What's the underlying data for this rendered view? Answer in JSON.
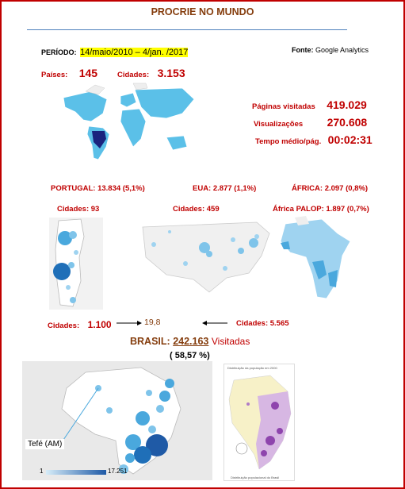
{
  "title": "PROCRIE NO MUNDO",
  "period": {
    "label": "PERÍODO:",
    "value": "14/maio/2010 – 4/jan. /2017"
  },
  "source": {
    "label": "Fonte:",
    "value": "Google Analytics"
  },
  "world": {
    "countries_label": "Países:",
    "countries_value": "145",
    "cities_label": "Cidades:",
    "cities_value": "3.153",
    "pages_label": "Páginas visitadas",
    "pages_value": "419.029",
    "views_label": "Visualizações",
    "views_value": "270.608",
    "time_label": "Tempo médio/pág.",
    "time_value": "00:02:31"
  },
  "regions": {
    "portugal": "PORTUGAL: 13.834 (5,1%)",
    "usa": "EUA: 2.877 (1,1%)",
    "africa": "ÁFRICA: 2.097 (0,8%)",
    "portugal_cities": "Cidades: 93",
    "usa_cities": "Cidades: 459",
    "palop": "África PALOP: 1.897 (0,7%)"
  },
  "ratio": {
    "left_label": "Cidades:",
    "left_value": "1.100",
    "middle": "19,8",
    "right_label": "Cidades: 5.565"
  },
  "brasil": {
    "label": "BRASIL:",
    "value": "242.163",
    "suffix": "Visitadas",
    "percent": "( 58,57 %)",
    "annotation": "Tefé (AM)",
    "scale_min": "1",
    "scale_max": "17.251",
    "popmap_title": "Distribuição da população em 2000",
    "popmap_caption": "Distribuição populacional do Brasil"
  },
  "colors": {
    "accent_red": "#c00000",
    "brown": "#843c0c",
    "map_blue": "#5bc0e8",
    "dark_blue": "#1f5aa6",
    "purple": "#8e44ad"
  }
}
